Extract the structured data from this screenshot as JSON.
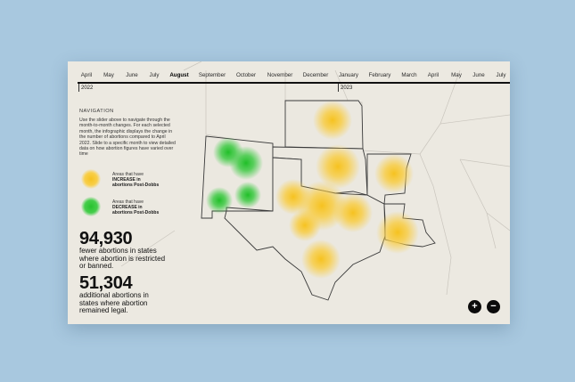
{
  "timeline": {
    "months": [
      {
        "label": "April",
        "active": false
      },
      {
        "label": "May",
        "active": false
      },
      {
        "label": "June",
        "active": false
      },
      {
        "label": "July",
        "active": false
      },
      {
        "label": "August",
        "active": true
      },
      {
        "label": "September",
        "active": false
      },
      {
        "label": "October",
        "active": false
      },
      {
        "label": "November",
        "active": false
      },
      {
        "label": "December",
        "active": false
      },
      {
        "label": "January",
        "active": false
      },
      {
        "label": "February",
        "active": false
      },
      {
        "label": "March",
        "active": false
      },
      {
        "label": "April",
        "active": false
      },
      {
        "label": "May",
        "active": false
      },
      {
        "label": "June",
        "active": false
      },
      {
        "label": "July",
        "active": false
      }
    ],
    "years": [
      "2022",
      "2023"
    ]
  },
  "navigation": {
    "title": "NAVIGATION",
    "text": "Use the slider above to navigate through the month-to-month changes. For each selected month, the infographic displays the change in the number of abortions compared to April 2022. Slide to a specific month to view detailed data on how abortion figures have varied over time"
  },
  "legend": {
    "increase": {
      "line1": "Areas that have",
      "line2": "INCREASE in",
      "line3": "abortions Post-Dobbs",
      "color": "#f6c21f"
    },
    "decrease": {
      "line1": "Areas that have",
      "line2": "DECREASE in",
      "line3": "abortions Post-Dobbs",
      "color": "#27c22e"
    }
  },
  "stats": {
    "fewer": {
      "value": "94,930",
      "label": "fewer abortions in states where abortion is restricted or banned."
    },
    "additional": {
      "value": "51,304",
      "label": "additional abortions in states where abortion remained legal."
    }
  },
  "zoom": {
    "in_label": "+",
    "out_label": "−"
  }
}
